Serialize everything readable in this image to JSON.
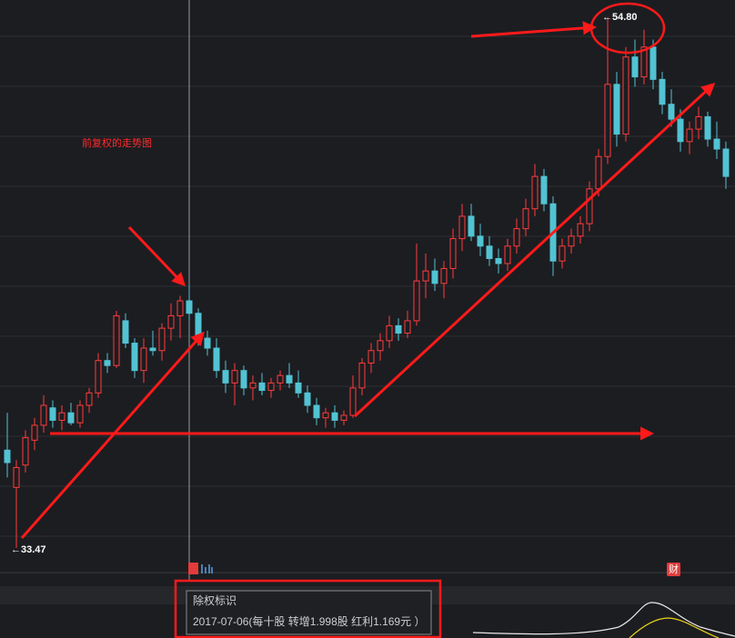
{
  "chart_data": {
    "type": "candlestick",
    "title": "前复权的走势图",
    "up_color": "#ff3b3b",
    "down_color": "#52c3d3",
    "ylim": [
      32.48,
      55.49
    ],
    "open": [
      37.4,
      35.9,
      36.8,
      37.8,
      38.4,
      39.1,
      38.6,
      38.9,
      38.5,
      39.2,
      39.7,
      41.0,
      40.8,
      42.6,
      41.7,
      40.6,
      41.5,
      41.4,
      42.3,
      42.8,
      43.4,
      42.9,
      41.9,
      41.5,
      40.6,
      40.1,
      40.6,
      39.9,
      40.1,
      39.8,
      40.1,
      40.4,
      40.1,
      39.7,
      39.2,
      38.7,
      38.9,
      38.6,
      38.8,
      39.9,
      40.9,
      41.4,
      41.8,
      42.4,
      42.1,
      42.6,
      44.2,
      44.6,
      44.1,
      44.7,
      45.9,
      46.8,
      46.0,
      45.6,
      45.1,
      44.9,
      45.6,
      46.3,
      47.1,
      48.4,
      47.3,
      45.0,
      45.6,
      46.0,
      46.5,
      47.9,
      49.2,
      52.1,
      50.1,
      53.2,
      52.4,
      53.6,
      52.3,
      51.3,
      50.7,
      49.8,
      50.3,
      50.8,
      49.9,
      49.5
    ],
    "high": [
      38.9,
      37.0,
      38.2,
      38.7,
      39.6,
      39.4,
      39.2,
      39.3,
      39.4,
      39.9,
      41.3,
      41.3,
      43.0,
      42.9,
      41.9,
      41.9,
      42.2,
      42.5,
      43.3,
      43.6,
      44.06,
      43.1,
      42.2,
      41.9,
      41.0,
      40.9,
      40.8,
      40.4,
      40.5,
      40.3,
      40.6,
      40.9,
      40.6,
      40.0,
      39.5,
      39.1,
      39.2,
      39.0,
      40.4,
      41.1,
      41.7,
      42.1,
      42.8,
      42.7,
      43.0,
      45.7,
      45.3,
      45.1,
      45.0,
      46.3,
      47.3,
      47.3,
      46.5,
      46.0,
      45.5,
      45.9,
      46.7,
      47.5,
      48.9,
      48.7,
      47.6,
      45.9,
      46.3,
      46.8,
      48.2,
      49.5,
      54.8,
      52.6,
      53.6,
      53.9,
      54.3,
      53.9,
      52.6,
      51.9,
      51.1,
      50.6,
      51.2,
      51.0,
      50.6,
      49.8
    ],
    "low": [
      36.3,
      33.47,
      36.5,
      37.4,
      38.1,
      38.3,
      38.2,
      38.4,
      38.3,
      38.9,
      39.5,
      40.5,
      40.7,
      41.5,
      40.3,
      40.1,
      41.2,
      41.0,
      41.8,
      41.9,
      42.6,
      41.6,
      41.2,
      40.3,
      39.7,
      39.2,
      39.6,
      39.4,
      39.6,
      39.5,
      39.8,
      39.9,
      39.5,
      38.9,
      38.4,
      38.3,
      38.3,
      38.4,
      38.7,
      39.6,
      40.5,
      41.0,
      41.5,
      41.8,
      41.9,
      42.4,
      43.5,
      43.8,
      43.5,
      44.3,
      45.4,
      45.8,
      45.2,
      44.8,
      44.5,
      44.6,
      45.3,
      46.0,
      46.8,
      47.0,
      44.4,
      44.7,
      45.3,
      45.7,
      46.2,
      47.6,
      48.9,
      49.6,
      49.8,
      52.0,
      52.1,
      51.9,
      50.9,
      50.4,
      49.4,
      49.3,
      49.9,
      49.6,
      49.1,
      47.9
    ],
    "close": [
      36.9,
      36.7,
      37.9,
      38.4,
      39.2,
      38.6,
      38.9,
      38.5,
      39.2,
      39.7,
      41.0,
      40.8,
      42.8,
      41.7,
      40.6,
      41.5,
      41.4,
      42.3,
      42.8,
      43.4,
      42.9,
      41.9,
      41.5,
      40.6,
      40.1,
      40.6,
      39.9,
      40.1,
      39.8,
      40.1,
      40.4,
      40.1,
      39.7,
      39.2,
      38.7,
      38.9,
      38.6,
      38.8,
      39.9,
      40.9,
      41.4,
      41.8,
      42.4,
      42.1,
      42.6,
      44.2,
      44.6,
      44.1,
      44.7,
      45.9,
      46.8,
      46.0,
      45.6,
      45.1,
      44.9,
      45.6,
      46.3,
      47.1,
      48.4,
      47.3,
      45.0,
      45.6,
      46.0,
      46.5,
      47.9,
      49.2,
      52.1,
      50.1,
      53.2,
      52.4,
      53.6,
      52.3,
      51.3,
      50.7,
      49.8,
      50.3,
      50.8,
      49.9,
      49.5,
      48.4
    ],
    "annotations": [
      {
        "value": 33.47,
        "label": "←33.47"
      },
      {
        "value": 54.8,
        "label": "←54.80"
      }
    ],
    "markers": [
      "财"
    ]
  },
  "tooltip": {
    "title": "除权标识",
    "text": "2017-07-06(每十股 转增1.998股 红利1.169元 ）"
  }
}
